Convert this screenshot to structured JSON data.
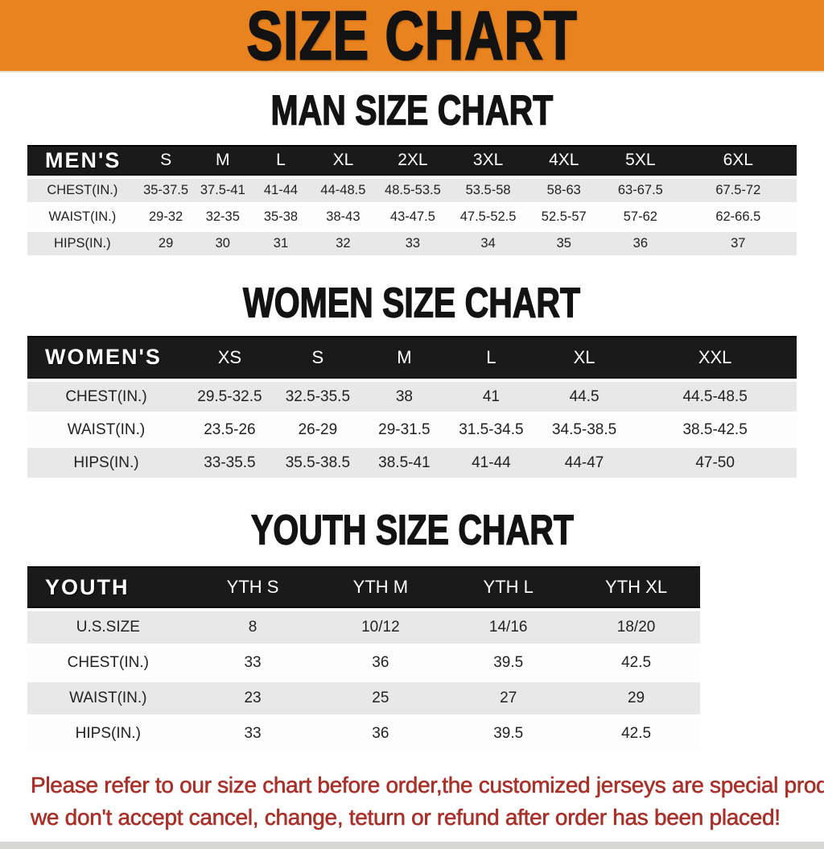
{
  "banner": {
    "title": "SIZE CHART"
  },
  "colors": {
    "banner_bg": "#E8831F",
    "table_header_bg": "#1A1A1A",
    "stripe_row_bg": "#E8E8E8",
    "disclaimer_red": "#A93129"
  },
  "sections": [
    {
      "id": "men",
      "heading": "MAN SIZE CHART",
      "table": {
        "header": [
          "MEN'S",
          "S",
          "M",
          "L",
          "XL",
          "2XL",
          "3XL",
          "4XL",
          "5XL",
          "6XL"
        ],
        "rows": [
          [
            "CHEST(IN.)",
            "35-37.5",
            "37.5-41",
            "41-44",
            "44-48.5",
            "48.5-53.5",
            "53.5-58",
            "58-63",
            "63-67.5",
            "67.5-72"
          ],
          [
            "WAIST(IN.)",
            "29-32",
            "32-35",
            "35-38",
            "38-43",
            "43-47.5",
            "47.5-52.5",
            "52.5-57",
            "57-62",
            "62-66.5"
          ],
          [
            "HIPS(IN.)",
            "29",
            "30",
            "31",
            "32",
            "33",
            "34",
            "35",
            "36",
            "37"
          ]
        ]
      }
    },
    {
      "id": "women",
      "heading": "WOMEN SIZE CHART",
      "table": {
        "header": [
          "WOMEN'S",
          "XS",
          "S",
          "M",
          "L",
          "XL",
          "XXL"
        ],
        "rows": [
          [
            "CHEST(IN.)",
            "29.5-32.5",
            "32.5-35.5",
            "38",
            "41",
            "44.5",
            "44.5-48.5"
          ],
          [
            "WAIST(IN.)",
            "23.5-26",
            "26-29",
            "29-31.5",
            "31.5-34.5",
            "34.5-38.5",
            "38.5-42.5"
          ],
          [
            "HIPS(IN.)",
            "33-35.5",
            "35.5-38.5",
            "38.5-41",
            "41-44",
            "44-47",
            "47-50"
          ]
        ]
      }
    },
    {
      "id": "youth",
      "heading": "YOUTH SIZE CHART",
      "table": {
        "header": [
          "YOUTH",
          "YTH S",
          "YTH M",
          "YTH L",
          "YTH XL"
        ],
        "rows": [
          [
            "U.S.SIZE",
            "8",
            "10/12",
            "14/16",
            "18/20"
          ],
          [
            "CHEST(IN.)",
            "33",
            "36",
            "39.5",
            "42.5"
          ],
          [
            "WAIST(IN.)",
            "23",
            "25",
            "27",
            "29"
          ],
          [
            "HIPS(IN.)",
            "33",
            "36",
            "39.5",
            "42.5"
          ]
        ]
      }
    }
  ],
  "disclaimer": {
    "line1": "Please refer to our size chart before order,the customized jerseys are special products,",
    "line2": "we don't accept cancel, change, teturn or refund after order has been placed!"
  }
}
